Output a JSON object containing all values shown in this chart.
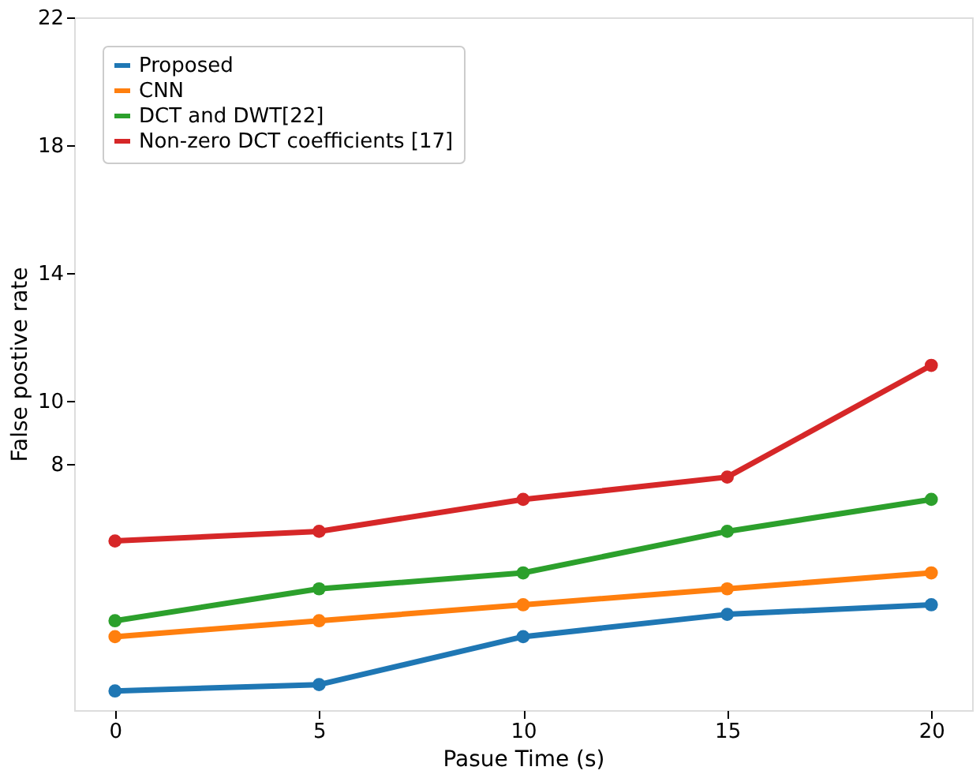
{
  "chart_data": {
    "type": "line",
    "xlabel": "Pasue Time (s)",
    "ylabel": "False postive rate",
    "x": [
      0,
      5,
      10,
      15,
      20
    ],
    "series": [
      {
        "name": "Proposed",
        "color": "#1f77b4",
        "values": [
          0.9,
          1.1,
          2.6,
          3.3,
          3.6
        ]
      },
      {
        "name": "CNN",
        "color": "#ff7f0e",
        "values": [
          2.6,
          3.1,
          3.6,
          4.1,
          4.6
        ]
      },
      {
        "name": "DCT and DWT[22]",
        "color": "#2ca02c",
        "values": [
          3.1,
          4.1,
          4.6,
          5.9,
          6.9
        ]
      },
      {
        "name": "Non-zero DCT coefficients [17]",
        "color": "#d62728",
        "values": [
          5.6,
          5.9,
          6.9,
          7.6,
          11.1
        ]
      }
    ],
    "xlim": [
      -1,
      21
    ],
    "ylim": [
      0.3,
      22
    ],
    "xticks": [
      0,
      5,
      10,
      15,
      20
    ],
    "yticks": [
      8,
      10,
      14,
      18,
      22
    ],
    "grid": false,
    "legend": "top left",
    "marker": "circle",
    "line_style": "solid"
  }
}
